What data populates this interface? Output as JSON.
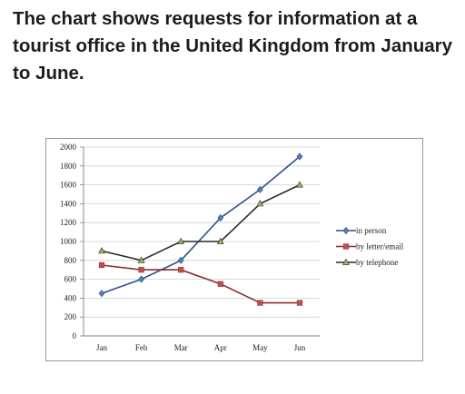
{
  "page": {
    "title": "The chart shows requests for information at a tourist office in the United Kingdom from January to June."
  },
  "chart_data": {
    "type": "line",
    "title": "",
    "xlabel": "",
    "ylabel": "",
    "categories": [
      "Jan",
      "Feb",
      "Mar",
      "Apr",
      "May",
      "Jun"
    ],
    "ylim": [
      0,
      2000
    ],
    "yticks": [
      0,
      200,
      400,
      600,
      800,
      1000,
      1200,
      1400,
      1600,
      1800,
      2000
    ],
    "grid": true,
    "legend_position": "right",
    "series": [
      {
        "name": "in person",
        "color": "#2f4f8f",
        "marker_color": "#4f81bd",
        "marker": "diamond",
        "values": [
          450,
          600,
          800,
          1250,
          1550,
          1900
        ]
      },
      {
        "name": "by letter/email",
        "color": "#8b2e2e",
        "marker_color": "#c0504d",
        "marker": "square",
        "values": [
          750,
          700,
          700,
          550,
          350,
          350
        ]
      },
      {
        "name": "by telephone",
        "color": "#2b2b2b",
        "marker_color": "#9bbb59",
        "marker": "triangle",
        "values": [
          900,
          800,
          1000,
          1000,
          1400,
          1600
        ]
      }
    ]
  }
}
